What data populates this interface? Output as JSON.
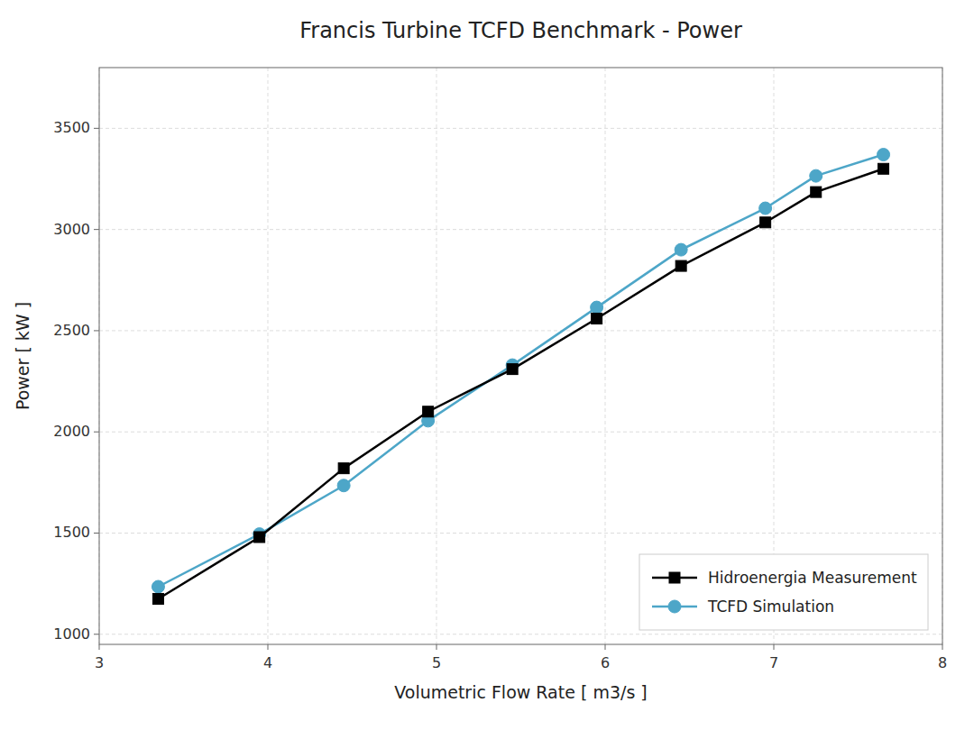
{
  "chart_data": {
    "type": "line",
    "title": "Francis Turbine TCFD Benchmark - Power",
    "xlabel": "Volumetric Flow Rate [ m3/s ]",
    "ylabel": "Power [ kW ]",
    "x": [
      3.35,
      3.95,
      4.45,
      4.95,
      5.45,
      5.95,
      6.45,
      6.95,
      7.25,
      7.65
    ],
    "series": [
      {
        "name": "Hidroenergia Measurement",
        "color": "#000000",
        "marker": "square",
        "line_style": "solid",
        "values": [
          1175,
          1480,
          1820,
          2100,
          2310,
          2560,
          2820,
          3035,
          3185,
          3300
        ]
      },
      {
        "name": "TCFD Simulation",
        "color": "#4da6c8",
        "marker": "circle",
        "line_style": "solid",
        "values": [
          1235,
          1495,
          1735,
          2055,
          2330,
          2615,
          2900,
          3105,
          3265,
          3370
        ]
      }
    ],
    "xlim": [
      3.0,
      8.0
    ],
    "ylim": [
      950,
      3800
    ],
    "xticks": [
      3,
      4,
      5,
      6,
      7,
      8
    ],
    "yticks": [
      1000,
      1500,
      2000,
      2500,
      3000,
      3500
    ],
    "grid": true,
    "legend": "lower right"
  }
}
